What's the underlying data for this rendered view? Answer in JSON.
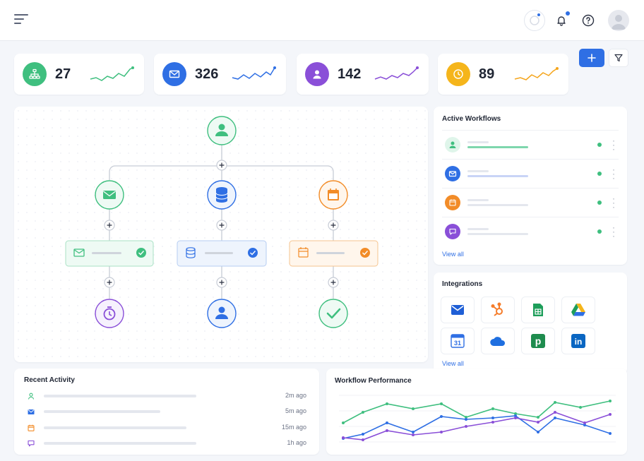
{
  "stats": [
    {
      "value": "27",
      "color": "#3fbf7f",
      "icon": "org-chart-icon"
    },
    {
      "value": "326",
      "color": "#2f6fe4",
      "icon": "mail-icon"
    },
    {
      "value": "142",
      "color": "#8a4fd8",
      "icon": "user-icon"
    },
    {
      "value": "89",
      "color": "#f5b51b",
      "icon": "clock-icon"
    }
  ],
  "active_workflows": {
    "title": "Active Workflows",
    "items": [
      {
        "icon": "user-icon",
        "color": "#3fbf7f",
        "status": "active"
      },
      {
        "icon": "mail-icon",
        "color": "#2f6fe4",
        "status": "active"
      },
      {
        "icon": "calendar-icon",
        "color": "#f28c28",
        "status": "active"
      },
      {
        "icon": "chat-icon",
        "color": "#8a4fd8",
        "status": "active"
      }
    ],
    "link": "View all"
  },
  "integrations": {
    "title": "Integrations",
    "items": [
      "gmail-icon",
      "hubspot-icon",
      "google-sheets-icon",
      "google-drive-icon",
      "google-calendar-icon",
      "onedrive-icon",
      "pipedrive-icon",
      "linkedin-icon"
    ],
    "calendar_number": "31",
    "pipedrive_letter": "p",
    "linkedin_letters": "in",
    "link": "View all"
  },
  "recent_activity": {
    "title": "Recent Activity",
    "items": [
      {
        "icon": "user-icon",
        "color": "#3fbf7f",
        "time": "2m ago"
      },
      {
        "icon": "mail-icon",
        "color": "#2f6fe4",
        "time": "5m ago"
      },
      {
        "icon": "calendar-icon",
        "color": "#f28c28",
        "time": "15m ago"
      },
      {
        "icon": "chat-icon",
        "color": "#8a4fd8",
        "time": "1h ago"
      }
    ]
  },
  "workflow_performance": {
    "title": "Workflow Performance"
  },
  "colors": {
    "accent": "#2f6fe4",
    "green": "#3fbf7f",
    "purple": "#8a4fd8",
    "orange": "#f28c28"
  }
}
